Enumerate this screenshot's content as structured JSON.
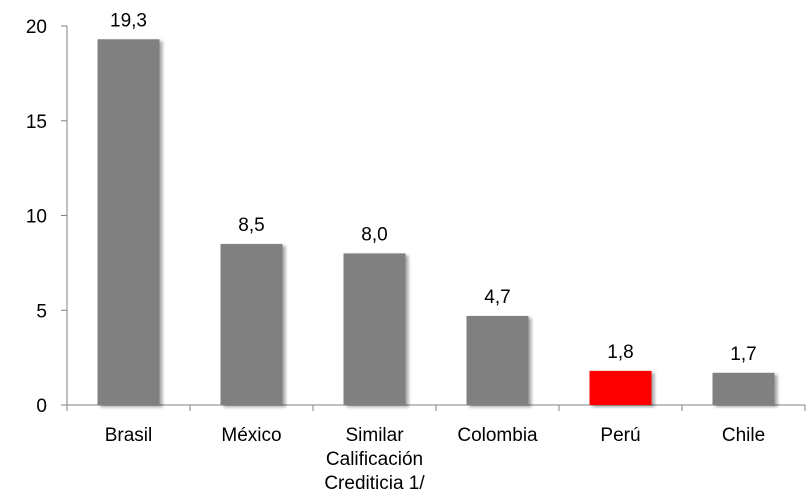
{
  "chart_data": {
    "type": "bar",
    "categories": [
      [
        "Brasil"
      ],
      [
        "México"
      ],
      [
        "Similar",
        "Calificación",
        "Crediticia 1/"
      ],
      [
        "Colombia"
      ],
      [
        "Perú"
      ],
      [
        "Chile"
      ]
    ],
    "values": [
      19.3,
      8.5,
      8.0,
      4.7,
      1.8,
      1.7
    ],
    "data_labels": [
      "19,3",
      "8,5",
      "8,0",
      "4,7",
      "1,8",
      "1,7"
    ],
    "bar_colors": [
      "#808080",
      "#808080",
      "#808080",
      "#808080",
      "#ff0000",
      "#808080"
    ],
    "yticks": [
      0,
      5,
      10,
      15,
      20
    ],
    "ylim": [
      0,
      20
    ],
    "grid": false,
    "legend": "none"
  }
}
